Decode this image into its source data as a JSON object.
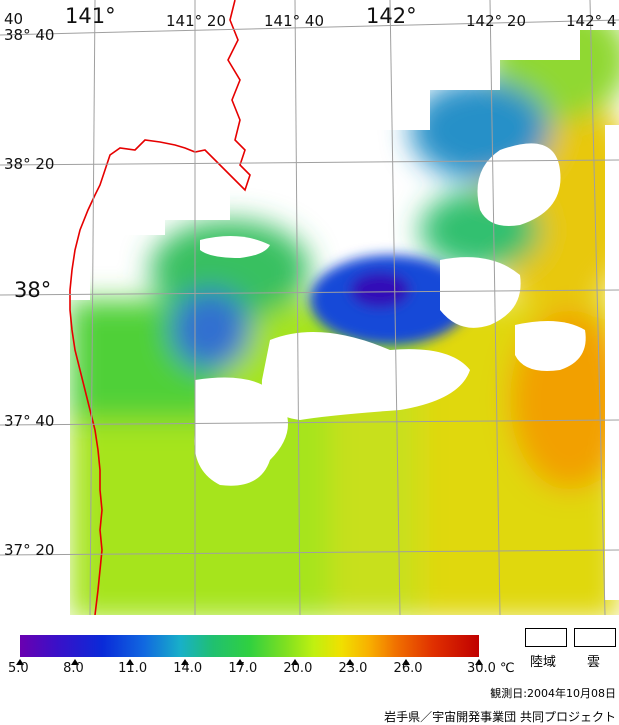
{
  "map_labels": {
    "lon_141": "141°",
    "lon_141_20": "141° 20",
    "lon_141_40": "141° 40",
    "lon_142": "142°",
    "lon_142_20": "142° 20",
    "lon_142_40": "142° 4",
    "corner_40": "40",
    "lat_38_40": "38° 40",
    "lat_38_20": "38° 20",
    "lat_38": "38°",
    "lat_37_40": "37° 40",
    "lat_37_20": "37° 20"
  },
  "legend": {
    "ticks": [
      "5.0",
      "8.0",
      "11.0",
      "14.0",
      "17.0",
      "20.0",
      "23.0",
      "26.0",
      "30.0"
    ],
    "unit": "℃",
    "land_label": "陸域",
    "cloud_label": "雲",
    "observation_date": "観測日:2004年10月08日",
    "credit": "岩手県／宇宙開発事業団 共同プロジェクト"
  },
  "colors": {
    "coastline": "#e60000",
    "grid": "#a0a0a0"
  }
}
